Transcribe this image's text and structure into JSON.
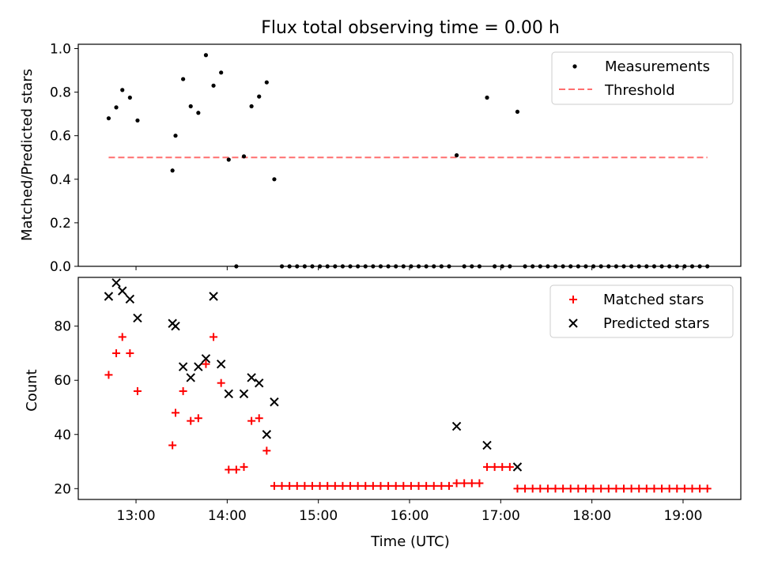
{
  "title": "Flux total observing time = 0.00 h",
  "chart_data": [
    {
      "type": "scatter",
      "panel": "top",
      "title": "Flux total observing time = 0.00 h",
      "xlabel": "",
      "ylabel": "Matched/Predicted stars",
      "xlim": [
        "12:22",
        "19:38"
      ],
      "ylim": [
        0,
        1.02
      ],
      "yticks": [
        "0.0",
        "0.2",
        "0.4",
        "0.6",
        "0.8",
        "1.0"
      ],
      "legend_position": "top-right",
      "series": [
        {
          "name": "Measurements",
          "marker": "dot",
          "color": "#000000",
          "points": [
            [
              "12:42",
              0.68
            ],
            [
              "12:47",
              0.73
            ],
            [
              "12:51",
              0.81
            ],
            [
              "12:56",
              0.775
            ],
            [
              "13:01",
              0.67
            ],
            [
              "13:24",
              0.44
            ],
            [
              "13:26",
              0.6
            ],
            [
              "13:31",
              0.86
            ],
            [
              "13:36",
              0.735
            ],
            [
              "13:41",
              0.705
            ],
            [
              "13:46",
              0.97
            ],
            [
              "13:51",
              0.83
            ],
            [
              "13:56",
              0.89
            ],
            [
              "14:01",
              0.49
            ],
            [
              "14:06",
              0.0
            ],
            [
              "14:11",
              0.505
            ],
            [
              "14:16",
              0.735
            ],
            [
              "14:21",
              0.78
            ],
            [
              "14:26",
              0.845
            ],
            [
              "14:31",
              0.4
            ],
            [
              "14:36",
              0.0
            ],
            [
              "14:41",
              0.0
            ],
            [
              "14:46",
              0.0
            ],
            [
              "14:51",
              0.0
            ],
            [
              "14:56",
              0.0
            ],
            [
              "15:01",
              0.0
            ],
            [
              "15:06",
              0.0
            ],
            [
              "15:11",
              0.0
            ],
            [
              "15:16",
              0.0
            ],
            [
              "15:21",
              0.0
            ],
            [
              "15:26",
              0.0
            ],
            [
              "15:31",
              0.0
            ],
            [
              "15:36",
              0.0
            ],
            [
              "15:41",
              0.0
            ],
            [
              "15:46",
              0.0
            ],
            [
              "15:51",
              0.0
            ],
            [
              "15:56",
              0.0
            ],
            [
              "16:01",
              0.0
            ],
            [
              "16:06",
              0.0
            ],
            [
              "16:11",
              0.0
            ],
            [
              "16:16",
              0.0
            ],
            [
              "16:21",
              0.0
            ],
            [
              "16:26",
              0.0
            ],
            [
              "16:31",
              0.51
            ],
            [
              "16:36",
              0.0
            ],
            [
              "16:41",
              0.0
            ],
            [
              "16:46",
              0.0
            ],
            [
              "16:51",
              0.775
            ],
            [
              "16:56",
              0.0
            ],
            [
              "17:01",
              0.0
            ],
            [
              "17:06",
              0.0
            ],
            [
              "17:11",
              0.71
            ],
            [
              "17:16",
              0.0
            ],
            [
              "17:21",
              0.0
            ],
            [
              "17:26",
              0.0
            ],
            [
              "17:31",
              0.0
            ],
            [
              "17:36",
              0.0
            ],
            [
              "17:41",
              0.0
            ],
            [
              "17:46",
              0.0
            ],
            [
              "17:51",
              0.0
            ],
            [
              "17:56",
              0.0
            ],
            [
              "18:01",
              0.0
            ],
            [
              "18:06",
              0.0
            ],
            [
              "18:11",
              0.0
            ],
            [
              "18:16",
              0.0
            ],
            [
              "18:21",
              0.0
            ],
            [
              "18:26",
              0.0
            ],
            [
              "18:31",
              0.0
            ],
            [
              "18:36",
              0.0
            ],
            [
              "18:41",
              0.0
            ],
            [
              "18:46",
              0.0
            ],
            [
              "18:51",
              0.0
            ],
            [
              "18:56",
              0.0
            ],
            [
              "19:01",
              0.0
            ],
            [
              "19:06",
              0.0
            ],
            [
              "19:11",
              0.0
            ],
            [
              "19:16",
              0.0
            ]
          ]
        },
        {
          "name": "Threshold",
          "style": "dashed-line",
          "color": "#ff6f6f",
          "points": [
            [
              "12:42",
              0.5
            ],
            [
              "19:16",
              0.5
            ]
          ]
        }
      ]
    },
    {
      "type": "scatter",
      "panel": "bottom",
      "xlabel": "Time (UTC)",
      "ylabel": "Count",
      "xlim": [
        "12:22",
        "19:38"
      ],
      "ylim": [
        16,
        98
      ],
      "xticks": [
        "13:00",
        "14:00",
        "15:00",
        "16:00",
        "17:00",
        "18:00",
        "19:00"
      ],
      "yticks": [
        "20",
        "40",
        "60",
        "80"
      ],
      "legend_position": "top-right",
      "series": [
        {
          "name": "Matched stars",
          "marker": "plus",
          "color": "#ff0000",
          "points": [
            [
              "12:42",
              62
            ],
            [
              "12:47",
              70
            ],
            [
              "12:51",
              76
            ],
            [
              "12:56",
              70
            ],
            [
              "13:01",
              56
            ],
            [
              "13:24",
              36
            ],
            [
              "13:26",
              48
            ],
            [
              "13:31",
              56
            ],
            [
              "13:36",
              45
            ],
            [
              "13:41",
              46
            ],
            [
              "13:46",
              66
            ],
            [
              "13:51",
              76
            ],
            [
              "13:56",
              59
            ],
            [
              "14:01",
              27
            ],
            [
              "14:06",
              27
            ],
            [
              "14:11",
              28
            ],
            [
              "14:16",
              45
            ],
            [
              "14:21",
              46
            ],
            [
              "14:26",
              34
            ],
            [
              "14:31",
              21
            ],
            [
              "14:36",
              21
            ],
            [
              "14:41",
              21
            ],
            [
              "14:46",
              21
            ],
            [
              "14:51",
              21
            ],
            [
              "14:56",
              21
            ],
            [
              "15:01",
              21
            ],
            [
              "15:06",
              21
            ],
            [
              "15:11",
              21
            ],
            [
              "15:16",
              21
            ],
            [
              "15:21",
              21
            ],
            [
              "15:26",
              21
            ],
            [
              "15:31",
              21
            ],
            [
              "15:36",
              21
            ],
            [
              "15:41",
              21
            ],
            [
              "15:46",
              21
            ],
            [
              "15:51",
              21
            ],
            [
              "15:56",
              21
            ],
            [
              "16:01",
              21
            ],
            [
              "16:06",
              21
            ],
            [
              "16:11",
              21
            ],
            [
              "16:16",
              21
            ],
            [
              "16:21",
              21
            ],
            [
              "16:26",
              21
            ],
            [
              "16:31",
              22
            ],
            [
              "16:36",
              22
            ],
            [
              "16:41",
              22
            ],
            [
              "16:46",
              22
            ],
            [
              "16:51",
              28
            ],
            [
              "16:56",
              28
            ],
            [
              "17:01",
              28
            ],
            [
              "17:06",
              28
            ],
            [
              "17:11",
              20
            ],
            [
              "17:16",
              20
            ],
            [
              "17:21",
              20
            ],
            [
              "17:26",
              20
            ],
            [
              "17:31",
              20
            ],
            [
              "17:36",
              20
            ],
            [
              "17:41",
              20
            ],
            [
              "17:46",
              20
            ],
            [
              "17:51",
              20
            ],
            [
              "17:56",
              20
            ],
            [
              "18:01",
              20
            ],
            [
              "18:06",
              20
            ],
            [
              "18:11",
              20
            ],
            [
              "18:16",
              20
            ],
            [
              "18:21",
              20
            ],
            [
              "18:26",
              20
            ],
            [
              "18:31",
              20
            ],
            [
              "18:36",
              20
            ],
            [
              "18:41",
              20
            ],
            [
              "18:46",
              20
            ],
            [
              "18:51",
              20
            ],
            [
              "18:56",
              20
            ],
            [
              "19:01",
              20
            ],
            [
              "19:06",
              20
            ],
            [
              "19:11",
              20
            ],
            [
              "19:16",
              20
            ]
          ]
        },
        {
          "name": "Predicted stars",
          "marker": "x",
          "color": "#000000",
          "points": [
            [
              "12:42",
              91
            ],
            [
              "12:47",
              96
            ],
            [
              "12:51",
              93
            ],
            [
              "12:56",
              90
            ],
            [
              "13:01",
              83
            ],
            [
              "13:24",
              81
            ],
            [
              "13:26",
              80
            ],
            [
              "13:31",
              65
            ],
            [
              "13:36",
              61
            ],
            [
              "13:41",
              65
            ],
            [
              "13:46",
              68
            ],
            [
              "13:51",
              91
            ],
            [
              "13:56",
              66
            ],
            [
              "14:01",
              55
            ],
            [
              "14:11",
              55
            ],
            [
              "14:16",
              61
            ],
            [
              "14:21",
              59
            ],
            [
              "14:26",
              40
            ],
            [
              "14:31",
              52
            ],
            [
              "16:31",
              43
            ],
            [
              "16:51",
              36
            ],
            [
              "17:11",
              28
            ]
          ]
        }
      ]
    }
  ]
}
